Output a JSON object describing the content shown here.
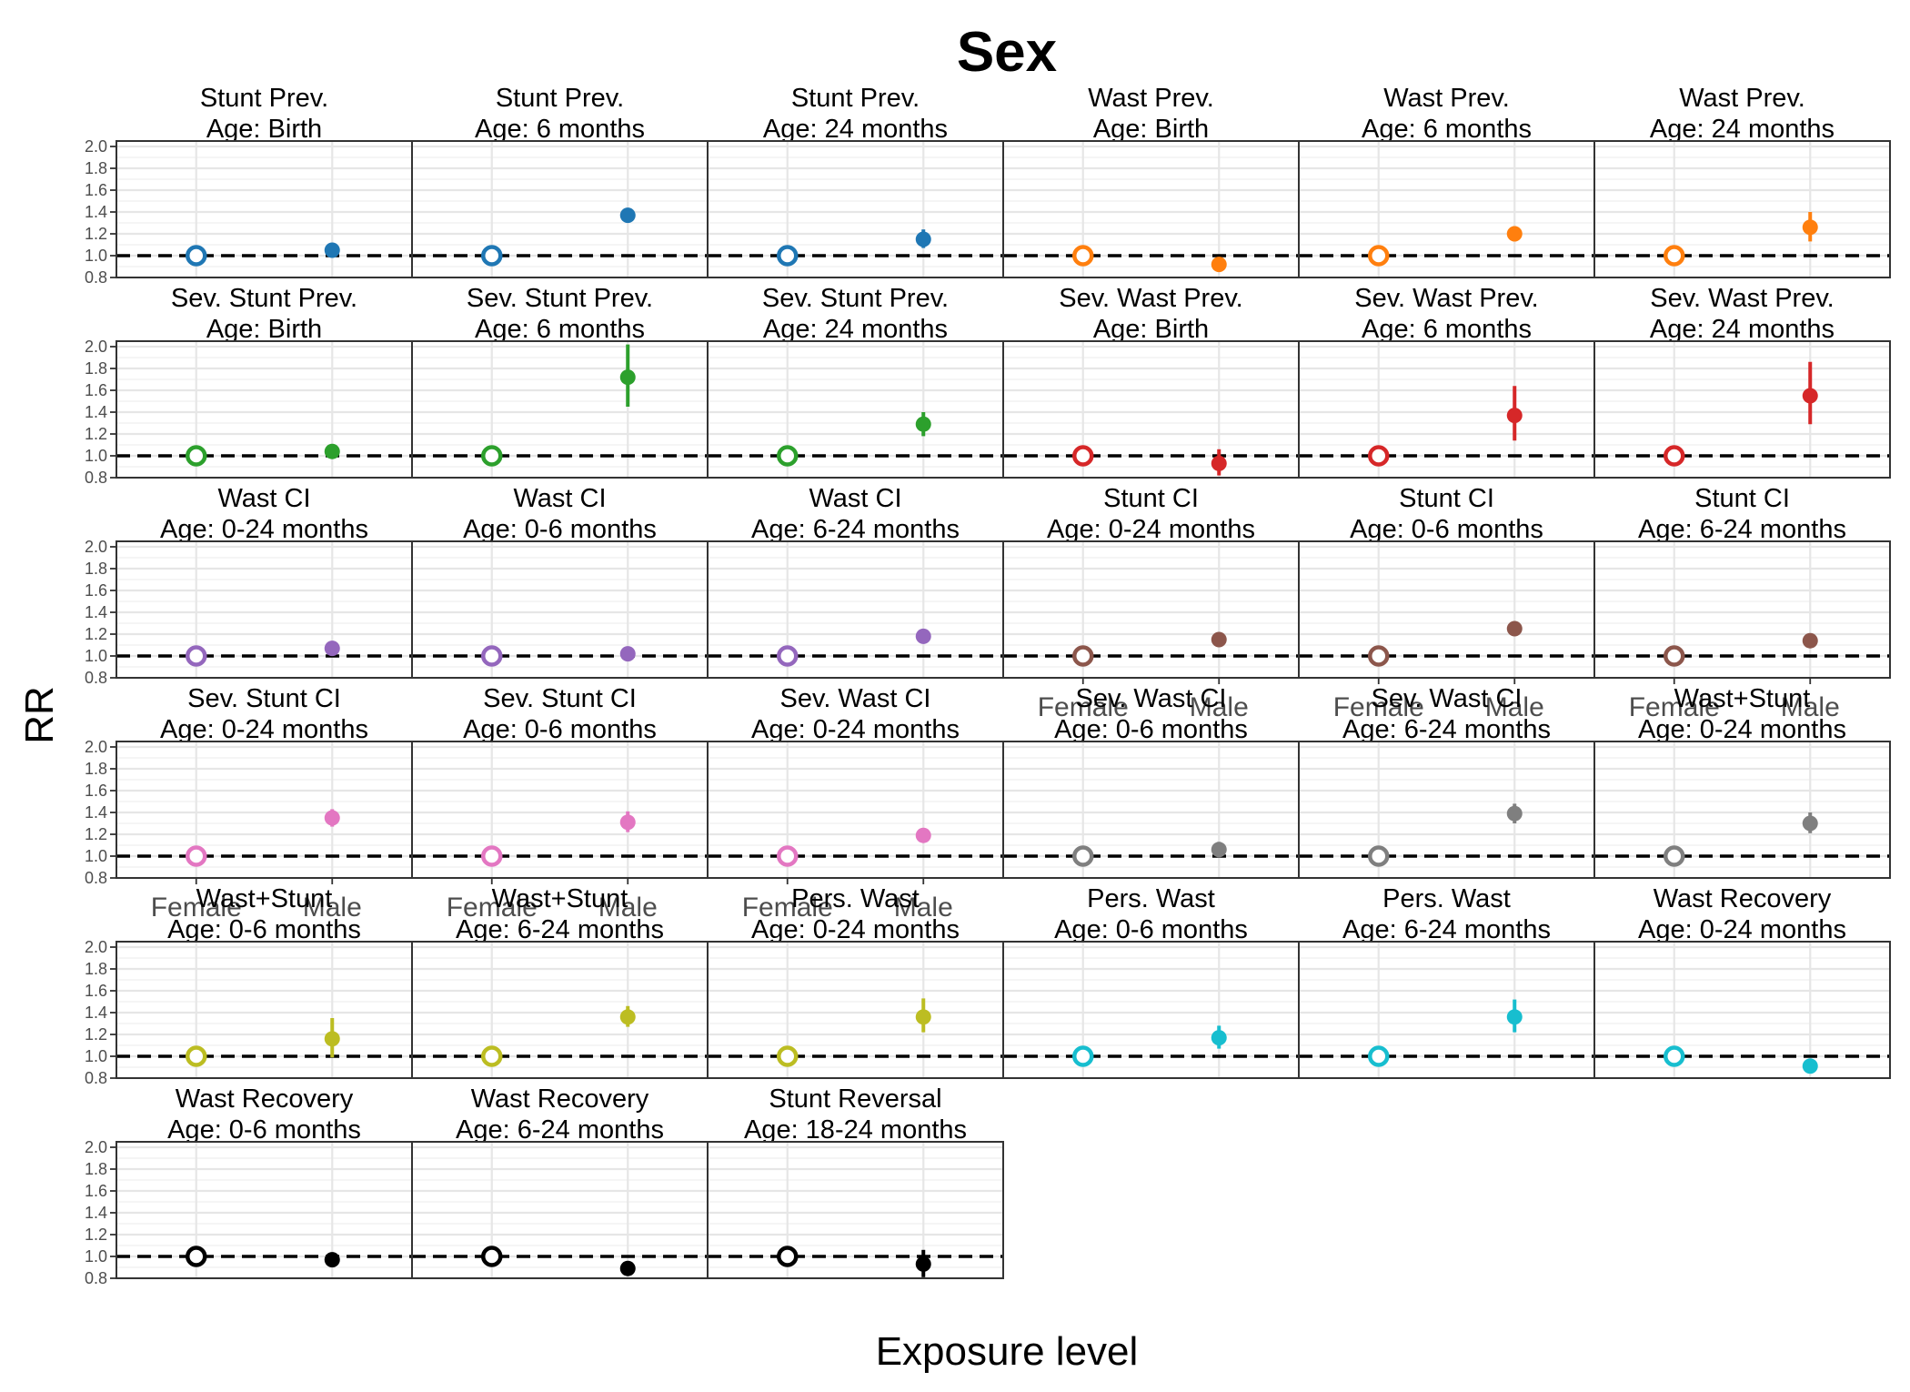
{
  "chart_data": {
    "type": "scatter",
    "title": "Sex",
    "xlabel": "Exposure level",
    "ylabel": "RR",
    "categories": [
      "Female",
      "Male"
    ],
    "ylim": [
      0.8,
      2.05
    ],
    "yticks": [
      "0.8",
      "1.0",
      "1.2",
      "1.4",
      "1.6",
      "1.8",
      "2.0"
    ],
    "reference_line": 1.0,
    "reference_category": "Female",
    "panels": [
      {
        "outcome": "Stunt Prev.",
        "age": "Age: Birth",
        "color": "#1F77B4",
        "rr": 1.05,
        "lo": 1.03,
        "hi": 1.07
      },
      {
        "outcome": "Stunt Prev.",
        "age": "Age: 6 months",
        "color": "#1F77B4",
        "rr": 1.37,
        "lo": 1.31,
        "hi": 1.43
      },
      {
        "outcome": "Stunt Prev.",
        "age": "Age: 24 months",
        "color": "#1F77B4",
        "rr": 1.15,
        "lo": 1.07,
        "hi": 1.24
      },
      {
        "outcome": "Wast Prev.",
        "age": "Age: Birth",
        "color": "#FF7F0E",
        "rr": 0.92,
        "lo": 0.88,
        "hi": 0.96
      },
      {
        "outcome": "Wast Prev.",
        "age": "Age: 6 months",
        "color": "#FF7F0E",
        "rr": 1.2,
        "lo": 1.13,
        "hi": 1.27
      },
      {
        "outcome": "Wast Prev.",
        "age": "Age: 24 months",
        "color": "#FF7F0E",
        "rr": 1.26,
        "lo": 1.13,
        "hi": 1.4
      },
      {
        "outcome": "Sev. Stunt Prev.",
        "age": "Age: Birth",
        "color": "#2CA02C",
        "rr": 1.04,
        "lo": 0.99,
        "hi": 1.09
      },
      {
        "outcome": "Sev. Stunt Prev.",
        "age": "Age: 6 months",
        "color": "#2CA02C",
        "rr": 1.72,
        "lo": 1.45,
        "hi": 2.02
      },
      {
        "outcome": "Sev. Stunt Prev.",
        "age": "Age: 24 months",
        "color": "#2CA02C",
        "rr": 1.29,
        "lo": 1.18,
        "hi": 1.4
      },
      {
        "outcome": "Sev. Wast Prev.",
        "age": "Age: Birth",
        "color": "#D62728",
        "rr": 0.93,
        "lo": 0.82,
        "hi": 1.06
      },
      {
        "outcome": "Sev. Wast Prev.",
        "age": "Age: 6 months",
        "color": "#D62728",
        "rr": 1.37,
        "lo": 1.14,
        "hi": 1.64
      },
      {
        "outcome": "Sev. Wast Prev.",
        "age": "Age: 24 months",
        "color": "#D62728",
        "rr": 1.55,
        "lo": 1.29,
        "hi": 1.86
      },
      {
        "outcome": "Wast CI",
        "age": "Age: 0-24 months",
        "color": "#9467BD",
        "rr": 1.07,
        "lo": 1.04,
        "hi": 1.1
      },
      {
        "outcome": "Wast CI",
        "age": "Age: 0-6 months",
        "color": "#9467BD",
        "rr": 1.02,
        "lo": 0.99,
        "hi": 1.05
      },
      {
        "outcome": "Wast CI",
        "age": "Age: 6-24 months",
        "color": "#9467BD",
        "rr": 1.18,
        "lo": 1.14,
        "hi": 1.22
      },
      {
        "outcome": "Stunt CI",
        "age": "Age: 0-24 months",
        "color": "#8C564B",
        "rr": 1.15,
        "lo": 1.12,
        "hi": 1.18
      },
      {
        "outcome": "Stunt CI",
        "age": "Age: 0-6 months",
        "color": "#8C564B",
        "rr": 1.25,
        "lo": 1.2,
        "hi": 1.3
      },
      {
        "outcome": "Stunt CI",
        "age": "Age: 6-24 months",
        "color": "#8C564B",
        "rr": 1.14,
        "lo": 1.11,
        "hi": 1.17
      },
      {
        "outcome": "Sev. Stunt CI",
        "age": "Age: 0-24 months",
        "color": "#E377C2",
        "rr": 1.35,
        "lo": 1.27,
        "hi": 1.43
      },
      {
        "outcome": "Sev. Stunt CI",
        "age": "Age: 0-6 months",
        "color": "#E377C2",
        "rr": 1.31,
        "lo": 1.22,
        "hi": 1.41
      },
      {
        "outcome": "Sev. Wast CI",
        "age": "Age: 0-24 months",
        "color": "#E377C2",
        "rr": 1.19,
        "lo": 1.13,
        "hi": 1.25
      },
      {
        "outcome": "Sev. Wast CI",
        "age": "Age: 0-6 months",
        "color": "#7F7F7F",
        "rr": 1.06,
        "lo": 0.99,
        "hi": 1.13
      },
      {
        "outcome": "Sev. Wast CI",
        "age": "Age: 6-24 months",
        "color": "#7F7F7F",
        "rr": 1.39,
        "lo": 1.3,
        "hi": 1.48
      },
      {
        "outcome": "Wast+Stunt",
        "age": "Age: 0-24 months",
        "color": "#7F7F7F",
        "rr": 1.3,
        "lo": 1.21,
        "hi": 1.4
      },
      {
        "outcome": "Wast+Stunt",
        "age": "Age: 0-6 months",
        "color": "#BCBD22",
        "rr": 1.16,
        "lo": 0.99,
        "hi": 1.35
      },
      {
        "outcome": "Wast+Stunt",
        "age": "Age: 6-24 months",
        "color": "#BCBD22",
        "rr": 1.36,
        "lo": 1.27,
        "hi": 1.46
      },
      {
        "outcome": "Pers. Wast",
        "age": "Age: 0-24 months",
        "color": "#BCBD22",
        "rr": 1.36,
        "lo": 1.22,
        "hi": 1.53
      },
      {
        "outcome": "Pers. Wast",
        "age": "Age: 0-6 months",
        "color": "#17BECF",
        "rr": 1.17,
        "lo": 1.07,
        "hi": 1.28
      },
      {
        "outcome": "Pers. Wast",
        "age": "Age: 6-24 months",
        "color": "#17BECF",
        "rr": 1.36,
        "lo": 1.22,
        "hi": 1.52
      },
      {
        "outcome": "Wast Recovery",
        "age": "Age: 0-24 months",
        "color": "#17BECF",
        "rr": 0.91,
        "lo": 0.89,
        "hi": 0.93
      },
      {
        "outcome": "Wast Recovery",
        "age": "Age: 0-6 months",
        "color": "#000000",
        "rr": 0.97,
        "lo": 0.95,
        "hi": 0.99
      },
      {
        "outcome": "Wast Recovery",
        "age": "Age: 6-24 months",
        "color": "#000000",
        "rr": 0.89,
        "lo": 0.87,
        "hi": 0.91
      },
      {
        "outcome": "Stunt Reversal",
        "age": "Age: 18-24 months",
        "color": "#000000",
        "rr": 0.93,
        "lo": 0.81,
        "hi": 1.06
      }
    ]
  }
}
